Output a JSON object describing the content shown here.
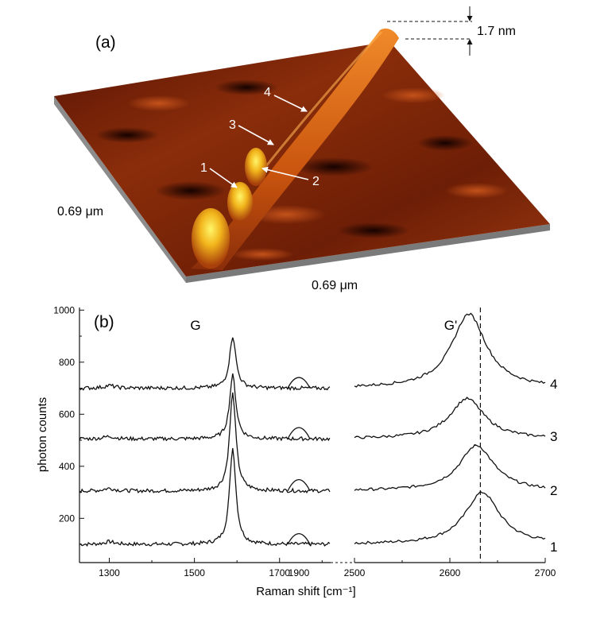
{
  "panel_a": {
    "label": "(a)",
    "height_scale": "1.7 nm",
    "width_left": "0.69 μm",
    "width_bottom": "0.69 μm",
    "points": [
      "1",
      "2",
      "3",
      "4"
    ],
    "colors": {
      "dark": "#2a0600",
      "mid": "#8a2d0a",
      "bright": "#e06a10",
      "peak": "#fff02a",
      "base": "#8c8c8c"
    }
  },
  "panel_b": {
    "label": "(b)",
    "ylabel": "photon counts",
    "xlabel": "Raman shift [cm⁻¹]",
    "g_label": "G",
    "g_prime_label": "G'",
    "trace_labels": [
      "4",
      "3",
      "2",
      "1"
    ]
  },
  "chart_data": {
    "type": "line",
    "title": "",
    "xlabel": "Raman shift [cm⁻¹]",
    "ylabel": "photon counts",
    "ylim": [
      30,
      1010
    ],
    "yticks": [
      200,
      400,
      600,
      800,
      1000
    ],
    "broken_x_axis": true,
    "segments": [
      {
        "xlim": [
          1230,
          1820
        ],
        "xticks": [
          1300,
          1500,
          1700,
          1900
        ]
      },
      {
        "xlim": [
          2500,
          2700
        ],
        "xticks": [
          2500,
          2600,
          2700
        ]
      }
    ],
    "annotations": [
      {
        "text": "G",
        "x": 1590
      },
      {
        "text": "G'",
        "x": 2590
      },
      {
        "text": "dashed vertical line",
        "x": 2632
      }
    ],
    "series": [
      {
        "name": "1",
        "baseline": 100,
        "g_peak": {
          "x": 1590,
          "y": 470
        },
        "d_peak": {
          "x": 1900,
          "y": 170
        },
        "g_prime_peak": {
          "x": 2634,
          "y": 300
        }
      },
      {
        "name": "2",
        "baseline": 305,
        "g_peak": {
          "x": 1590,
          "y": 680
        },
        "d_peak": {
          "x": 1905,
          "y": 380
        },
        "g_prime_peak": {
          "x": 2628,
          "y": 480
        }
      },
      {
        "name": "3",
        "baseline": 505,
        "g_peak": {
          "x": 1590,
          "y": 750
        },
        "d_peak": {
          "x": 1905,
          "y": 580
        },
        "g_prime_peak": {
          "x": 2618,
          "y": 660
        }
      },
      {
        "name": "4",
        "baseline": 700,
        "g_peak": {
          "x": 1590,
          "y": 900
        },
        "d_peak": {
          "x": 1905,
          "y": 770
        },
        "g_prime_peak": {
          "x": 2620,
          "y": 985
        }
      }
    ]
  }
}
